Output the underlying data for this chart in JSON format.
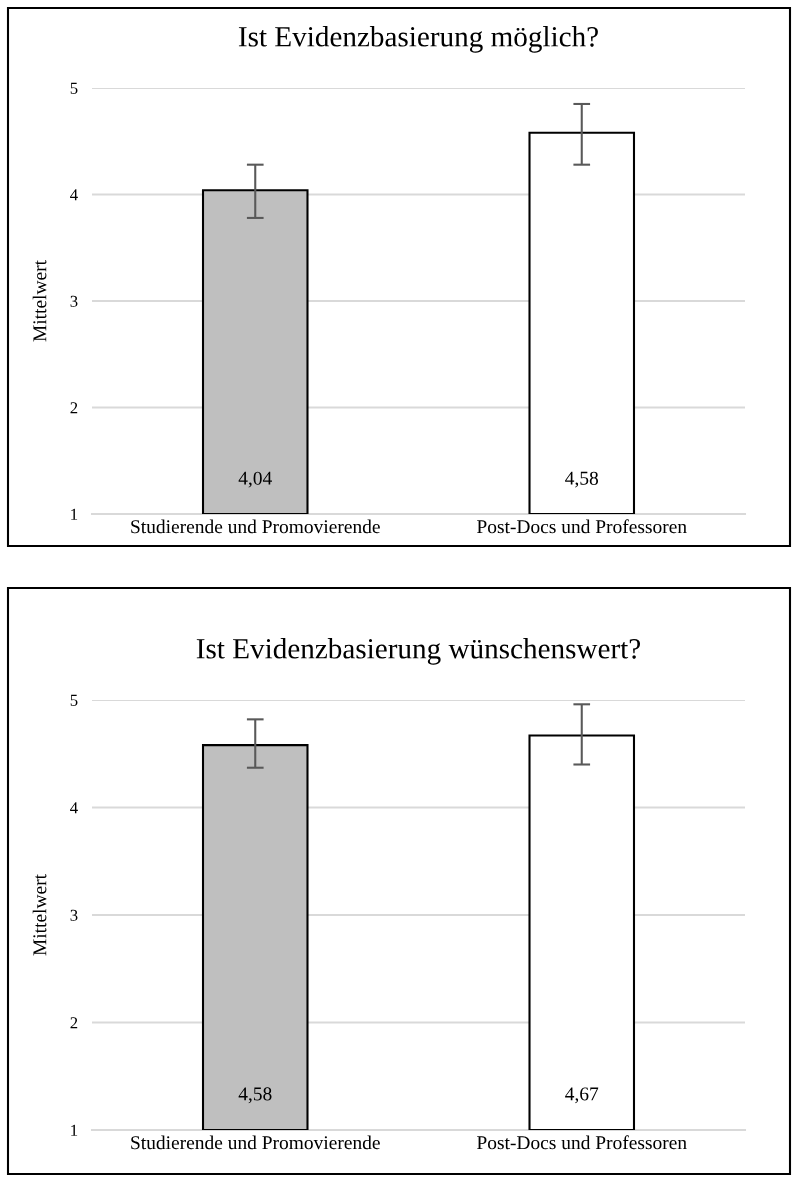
{
  "chart_data": [
    {
      "type": "bar",
      "title": "Ist Evidenzbasierung möglich?",
      "ylabel": "Mittelwert",
      "categories": [
        "Studierende und Promovierende",
        "Post-Docs und Professoren"
      ],
      "values": [
        4.04,
        4.58
      ],
      "colors": [
        "#bfbfbf",
        "#ffffff"
      ],
      "errors": [
        [
          3.78,
          4.28
        ],
        [
          4.28,
          4.85
        ]
      ],
      "value_labels": [
        "4,04",
        "4,58"
      ],
      "ylim": [
        1,
        5
      ],
      "yticks": [
        1,
        2,
        3,
        4,
        5
      ],
      "grid": "y",
      "legend": false
    },
    {
      "type": "bar",
      "title": "Ist Evidenzbasierung wünschenswert?",
      "ylabel": "Mittelwert",
      "categories": [
        "Studierende und Promovierende",
        "Post-Docs und Professoren"
      ],
      "values": [
        4.58,
        4.67
      ],
      "colors": [
        "#bfbfbf",
        "#ffffff"
      ],
      "errors": [
        [
          4.37,
          4.82
        ],
        [
          4.4,
          4.96
        ]
      ],
      "value_labels": [
        "4,58",
        "4,67"
      ],
      "ylim": [
        1,
        5
      ],
      "yticks": [
        1,
        2,
        3,
        4,
        5
      ],
      "grid": "y",
      "legend": false
    }
  ]
}
